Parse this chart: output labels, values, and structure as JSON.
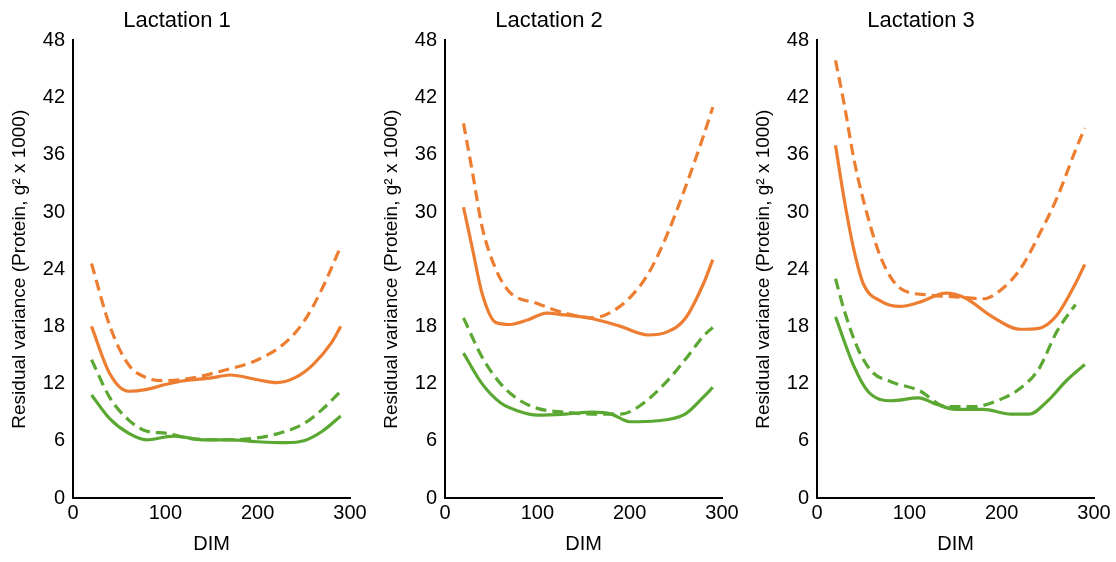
{
  "chart_data": [
    {
      "type": "line",
      "title": "Lactation 1",
      "xlabel": "DIM",
      "ylabel": "Residual variance (Protein, g² x 1000)",
      "xlim": [
        0,
        300
      ],
      "xticks": [
        0,
        100,
        200,
        300
      ],
      "ylim": [
        0,
        48
      ],
      "yticks": [
        0,
        6,
        12,
        18,
        24,
        30,
        36,
        42,
        48
      ],
      "grid": false,
      "legend": false,
      "marker": "none",
      "series": [
        {
          "color": "#ed7d31",
          "line_style": "solid",
          "x": [
            20,
            40,
            60,
            80,
            100,
            120,
            150,
            170,
            200,
            220,
            240,
            260,
            280,
            290
          ],
          "values": [
            18,
            13,
            11.2,
            11.4,
            11.9,
            12.3,
            12.6,
            12.9,
            12.4,
            12.1,
            12.6,
            14,
            16.3,
            18
          ]
        },
        {
          "color": "#ed7d31",
          "line_style": "dashed",
          "x": [
            20,
            40,
            60,
            80,
            100,
            130,
            160,
            200,
            230,
            250,
            270,
            290
          ],
          "values": [
            24.6,
            18,
            14,
            12.6,
            12.3,
            12.6,
            13.3,
            14.5,
            16.3,
            18.5,
            22,
            26.4
          ]
        },
        {
          "color": "#5aa832",
          "line_style": "solid",
          "x": [
            20,
            40,
            60,
            80,
            100,
            110,
            140,
            170,
            200,
            230,
            250,
            270,
            290
          ],
          "values": [
            10.8,
            8.3,
            6.8,
            6.1,
            6.4,
            6.5,
            6.1,
            6.1,
            5.9,
            5.8,
            6,
            7,
            8.6
          ]
        },
        {
          "color": "#5aa832",
          "line_style": "dashed",
          "x": [
            20,
            40,
            60,
            80,
            100,
            130,
            160,
            190,
            220,
            250,
            270,
            290
          ],
          "values": [
            14.5,
            10.5,
            8.2,
            7,
            6.8,
            6.2,
            6.1,
            6.2,
            6.7,
            7.8,
            9.3,
            11.2
          ]
        }
      ]
    },
    {
      "type": "line",
      "title": "Lactation 2",
      "xlabel": "DIM",
      "ylabel": "Residual variance (Protein, g² x 1000)",
      "xlim": [
        0,
        300
      ],
      "xticks": [
        0,
        100,
        200,
        300
      ],
      "ylim": [
        0,
        48
      ],
      "yticks": [
        0,
        6,
        12,
        18,
        24,
        30,
        36,
        42,
        48
      ],
      "grid": false,
      "legend": false,
      "marker": "none",
      "series": [
        {
          "color": "#ed7d31",
          "line_style": "solid",
          "x": [
            20,
            30,
            40,
            55,
            70,
            90,
            110,
            130,
            160,
            190,
            220,
            240,
            260,
            280,
            290
          ],
          "values": [
            30.5,
            26,
            21.5,
            18.4,
            18.2,
            18.7,
            19.4,
            19.2,
            18.8,
            18,
            17.1,
            17.4,
            18.8,
            22.5,
            25
          ]
        },
        {
          "color": "#ed7d31",
          "line_style": "dashed",
          "x": [
            20,
            30,
            40,
            55,
            70,
            100,
            130,
            160,
            180,
            200,
            220,
            240,
            260,
            280,
            290
          ],
          "values": [
            39.3,
            34,
            28.5,
            24,
            21.6,
            20.4,
            19.4,
            18.9,
            19.5,
            21,
            23.5,
            27.5,
            32.5,
            38,
            41
          ]
        },
        {
          "color": "#5aa832",
          "line_style": "solid",
          "x": [
            20,
            40,
            60,
            80,
            100,
            130,
            160,
            180,
            200,
            230,
            260,
            280,
            290
          ],
          "values": [
            15.2,
            12,
            10,
            9.1,
            8.7,
            8.8,
            9,
            8.8,
            8,
            8.1,
            8.8,
            10.6,
            11.6
          ]
        },
        {
          "color": "#5aa832",
          "line_style": "dashed",
          "x": [
            20,
            40,
            60,
            80,
            100,
            130,
            160,
            190,
            210,
            240,
            260,
            280,
            290
          ],
          "values": [
            18.9,
            14.8,
            12,
            10.3,
            9.4,
            9,
            8.8,
            8.8,
            9.6,
            12.2,
            14.5,
            17,
            17.9
          ]
        }
      ]
    },
    {
      "type": "line",
      "title": "Lactation 3",
      "xlabel": "DIM",
      "ylabel": "Residual variance (Protein, g² x 1000)",
      "xlim": [
        0,
        300
      ],
      "xticks": [
        0,
        100,
        200,
        300
      ],
      "ylim": [
        0,
        48
      ],
      "yticks": [
        0,
        6,
        12,
        18,
        24,
        30,
        36,
        42,
        48
      ],
      "grid": false,
      "legend": false,
      "marker": "none",
      "series": [
        {
          "color": "#ed7d31",
          "line_style": "solid",
          "x": [
            20,
            30,
            40,
            50,
            70,
            90,
            110,
            140,
            160,
            190,
            220,
            240,
            260,
            280,
            290
          ],
          "values": [
            37,
            31,
            26,
            22.5,
            20.6,
            20.1,
            20.5,
            21.5,
            21,
            19,
            17.7,
            17.8,
            19.2,
            22.5,
            24.5
          ]
        },
        {
          "color": "#ed7d31",
          "line_style": "dashed",
          "x": [
            20,
            30,
            40,
            55,
            70,
            90,
            120,
            150,
            180,
            200,
            220,
            240,
            260,
            280,
            290
          ],
          "values": [
            45.9,
            41,
            35.5,
            29.5,
            25,
            22,
            21.3,
            21.1,
            20.9,
            21.9,
            24,
            27.5,
            31.5,
            36.5,
            38.8
          ]
        },
        {
          "color": "#5aa832",
          "line_style": "solid",
          "x": [
            20,
            40,
            55,
            80,
            110,
            130,
            150,
            180,
            210,
            230,
            250,
            270,
            290
          ],
          "values": [
            19,
            13.8,
            11.2,
            10.2,
            10.5,
            9.8,
            9.3,
            9.3,
            8.8,
            8.8,
            10.2,
            12.3,
            14
          ]
        },
        {
          "color": "#5aa832",
          "line_style": "dashed",
          "x": [
            20,
            30,
            45,
            60,
            80,
            110,
            140,
            170,
            200,
            220,
            240,
            260,
            280
          ],
          "values": [
            23,
            19.5,
            15.5,
            13.2,
            12.2,
            11.3,
            9.6,
            9.6,
            10.4,
            11.5,
            13.5,
            17.5,
            20.3
          ]
        }
      ]
    }
  ]
}
